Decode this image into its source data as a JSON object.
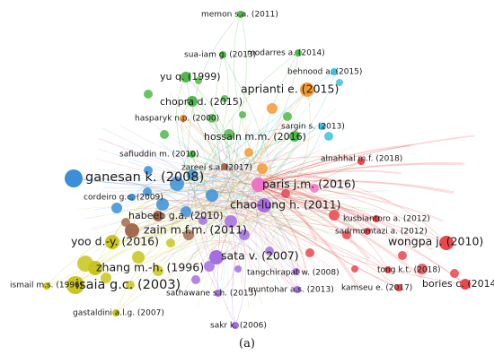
{
  "caption": "(a)",
  "colors": {
    "red": "#e8474c",
    "green": "#4fb84a",
    "blue": "#3a8fd8",
    "yellow": "#c9c51c",
    "purple": "#a46ee0",
    "orange": "#f59a32",
    "cyan": "#39c3e0",
    "brown": "#a56a4e",
    "pink": "#ee73c6"
  },
  "nodes": [
    {
      "label": "memon s.a. (2011)",
      "cluster": "green",
      "weight": 1
    },
    {
      "label": "sua-iam g. (2013)",
      "cluster": "green",
      "weight": 1
    },
    {
      "label": "modarres a. (2014)",
      "cluster": "green",
      "weight": 1
    },
    {
      "label": "behnood a. (2015)",
      "cluster": "cyan",
      "weight": 1
    },
    {
      "label": "yu q. (1999)",
      "cluster": "green",
      "weight": 2
    },
    {
      "label": "aprianti e. (2015)",
      "cluster": "orange",
      "weight": 3
    },
    {
      "label": "chopra d. (2015)",
      "cluster": "green",
      "weight": 2
    },
    {
      "label": "hasparyk n.p. (2000)",
      "cluster": "orange",
      "weight": 1
    },
    {
      "label": "sargin s. (2013)",
      "cluster": "cyan",
      "weight": 1
    },
    {
      "label": "hossain m.m. (2016)",
      "cluster": "green",
      "weight": 2
    },
    {
      "label": "safiuddin m. (2010)",
      "cluster": "green",
      "weight": 1
    },
    {
      "label": "alnahhal m.f. (2018)",
      "cluster": "red",
      "weight": 1
    },
    {
      "label": "zareei s.a. (2017)",
      "cluster": "brown",
      "weight": 1
    },
    {
      "label": "ganesan k. (2008)",
      "cluster": "blue",
      "weight": 4
    },
    {
      "label": "paris j.m. (2016)",
      "cluster": "pink",
      "weight": 3
    },
    {
      "label": "cordeiro g.c. (2009)",
      "cluster": "blue",
      "weight": 1
    },
    {
      "label": "chao-lung h. (2011)",
      "cluster": "purple",
      "weight": 3
    },
    {
      "label": "kusbiantoro a. (2012)",
      "cluster": "red",
      "weight": 1
    },
    {
      "label": "habeeb g.a. (2010)",
      "cluster": "brown",
      "weight": 2
    },
    {
      "label": "sadrmomtazi a. (2012)",
      "cluster": "red",
      "weight": 1
    },
    {
      "label": "zain m.f.m. (2011)",
      "cluster": "brown",
      "weight": 3
    },
    {
      "label": "wongpa j. (2010)",
      "cluster": "red",
      "weight": 3
    },
    {
      "label": "yoo d.-y. (2016)",
      "cluster": "yellow",
      "weight": 3
    },
    {
      "label": "sata v. (2007)",
      "cluster": "purple",
      "weight": 3
    },
    {
      "label": "zhang m.-h. (1996)",
      "cluster": "yellow",
      "weight": 3
    },
    {
      "label": "tangchirapat w. (2008)",
      "cluster": "purple",
      "weight": 1
    },
    {
      "label": "isaia g.c. (2003)",
      "cluster": "yellow",
      "weight": 4
    },
    {
      "label": "tong k.t. (2018)",
      "cluster": "red",
      "weight": 1
    },
    {
      "label": "ismail m.s. (1996)",
      "cluster": "yellow",
      "weight": 1
    },
    {
      "label": "bories c. (2014)",
      "cluster": "red",
      "weight": 2
    },
    {
      "label": "muntohar a.s. (2013)",
      "cluster": "purple",
      "weight": 1
    },
    {
      "label": "kamseu e. (2017)",
      "cluster": "red",
      "weight": 1
    },
    {
      "label": "sathawane s.h. (2013)",
      "cluster": "purple",
      "weight": 1
    },
    {
      "label": "gastaldini a.l.g. (2007)",
      "cluster": "yellow",
      "weight": 1
    },
    {
      "label": "sakr k. (2006)",
      "cluster": "purple",
      "weight": 1
    }
  ]
}
